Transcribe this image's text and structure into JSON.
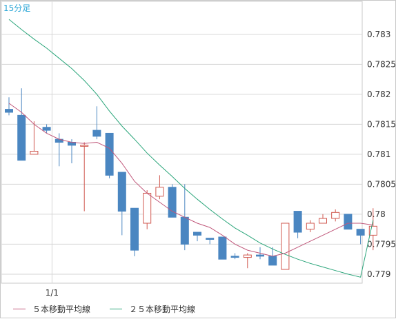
{
  "period_label": "15分足",
  "colors": {
    "bull": "#d0574e",
    "bear": "#4a86c1",
    "ma5": "#c0577a",
    "ma25": "#2aa57a",
    "grid": "#d6d6d6"
  },
  "legend": [
    {
      "label": "５本移動平均線",
      "color": "#c0577a"
    },
    {
      "label": "２５本移動平均線",
      "color": "#2aa57a"
    }
  ],
  "chart_data": {
    "type": "candlestick",
    "x_ticks": [
      {
        "index": 2,
        "label": "1/1"
      }
    ],
    "y_ticks": [
      0.779,
      0.7795,
      0.78,
      0.7805,
      0.781,
      0.7815,
      0.782,
      0.7825,
      0.783
    ],
    "y_tick_labels": [
      "0.779",
      "0.7795",
      "0.78",
      "0.7805",
      "0.781",
      "0.7815",
      "0.782",
      "0.7825",
      "0.783"
    ],
    "ylim": [
      0.77885,
      0.78355
    ],
    "grid": true,
    "candles": [
      {
        "open": 0.78175,
        "high": 0.78195,
        "low": 0.78165,
        "close": 0.7817
      },
      {
        "open": 0.78165,
        "high": 0.7821,
        "low": 0.7809,
        "close": 0.7809
      },
      {
        "open": 0.781,
        "high": 0.78155,
        "low": 0.781,
        "close": 0.78105
      },
      {
        "open": 0.78145,
        "high": 0.7815,
        "low": 0.78135,
        "close": 0.7814
      },
      {
        "open": 0.78125,
        "high": 0.78135,
        "low": 0.7808,
        "close": 0.7812
      },
      {
        "open": 0.7812,
        "high": 0.78125,
        "low": 0.78085,
        "close": 0.78115
      },
      {
        "open": 0.78115,
        "high": 0.7812,
        "low": 0.78005,
        "close": 0.78115
      },
      {
        "open": 0.7814,
        "high": 0.7818,
        "low": 0.78125,
        "close": 0.7813
      },
      {
        "open": 0.78135,
        "high": 0.78135,
        "low": 0.7806,
        "close": 0.78065
      },
      {
        "open": 0.7807,
        "high": 0.7807,
        "low": 0.77965,
        "close": 0.78005
      },
      {
        "open": 0.7801,
        "high": 0.7801,
        "low": 0.7793,
        "close": 0.7794
      },
      {
        "open": 0.77985,
        "high": 0.7804,
        "low": 0.77975,
        "close": 0.78035
      },
      {
        "open": 0.7803,
        "high": 0.78065,
        "low": 0.78025,
        "close": 0.78045
      },
      {
        "open": 0.78045,
        "high": 0.7805,
        "low": 0.77995,
        "close": 0.77995
      },
      {
        "open": 0.77995,
        "high": 0.7805,
        "low": 0.7794,
        "close": 0.7795
      },
      {
        "open": 0.7797,
        "high": 0.7797,
        "low": 0.77955,
        "close": 0.77965
      },
      {
        "open": 0.7796,
        "high": 0.7796,
        "low": 0.7795,
        "close": 0.77958
      },
      {
        "open": 0.77962,
        "high": 0.77962,
        "low": 0.77925,
        "close": 0.77925
      },
      {
        "open": 0.7793,
        "high": 0.77935,
        "low": 0.77925,
        "close": 0.77928
      },
      {
        "open": 0.77928,
        "high": 0.77935,
        "low": 0.7791,
        "close": 0.77932
      },
      {
        "open": 0.77932,
        "high": 0.77945,
        "low": 0.77925,
        "close": 0.7793
      },
      {
        "open": 0.7793,
        "high": 0.77945,
        "low": 0.77915,
        "close": 0.77915
      },
      {
        "open": 0.77908,
        "high": 0.77985,
        "low": 0.77908,
        "close": 0.77985
      },
      {
        "open": 0.78005,
        "high": 0.78005,
        "low": 0.7796,
        "close": 0.7797
      },
      {
        "open": 0.77975,
        "high": 0.7799,
        "low": 0.7797,
        "close": 0.77985
      },
      {
        "open": 0.77985,
        "high": 0.78,
        "low": 0.77985,
        "close": 0.77993
      },
      {
        "open": 0.77993,
        "high": 0.78008,
        "low": 0.77988,
        "close": 0.78003
      },
      {
        "open": 0.78,
        "high": 0.78,
        "low": 0.77975,
        "close": 0.77975
      },
      {
        "open": 0.77975,
        "high": 0.77975,
        "low": 0.7795,
        "close": 0.77965
      },
      {
        "open": 0.77965,
        "high": 0.7801,
        "low": 0.7794,
        "close": 0.7798
      }
    ],
    "ma5": [
      0.78185,
      0.7817,
      0.7815,
      0.78135,
      0.78125,
      0.7812,
      0.78118,
      0.7812,
      0.7811,
      0.78085,
      0.78055,
      0.78035,
      0.7802,
      0.78005,
      0.77995,
      0.77985,
      0.77978,
      0.77965,
      0.7795,
      0.7794,
      0.77935,
      0.7793,
      0.77935,
      0.77945,
      0.77955,
      0.77965,
      0.77975,
      0.77985,
      0.77985,
      0.77982
    ],
    "ma25": [
      0.78325,
      0.78308,
      0.78292,
      0.78277,
      0.7826,
      0.78243,
      0.78223,
      0.782,
      0.78172,
      0.78147,
      0.78125,
      0.78102,
      0.78082,
      0.78063,
      0.78043,
      0.78025,
      0.78008,
      0.77992,
      0.77977,
      0.77965,
      0.77952,
      0.77942,
      0.77933,
      0.77925,
      0.77918,
      0.77912,
      0.77906,
      0.779,
      0.77895,
      0.7799
    ]
  }
}
